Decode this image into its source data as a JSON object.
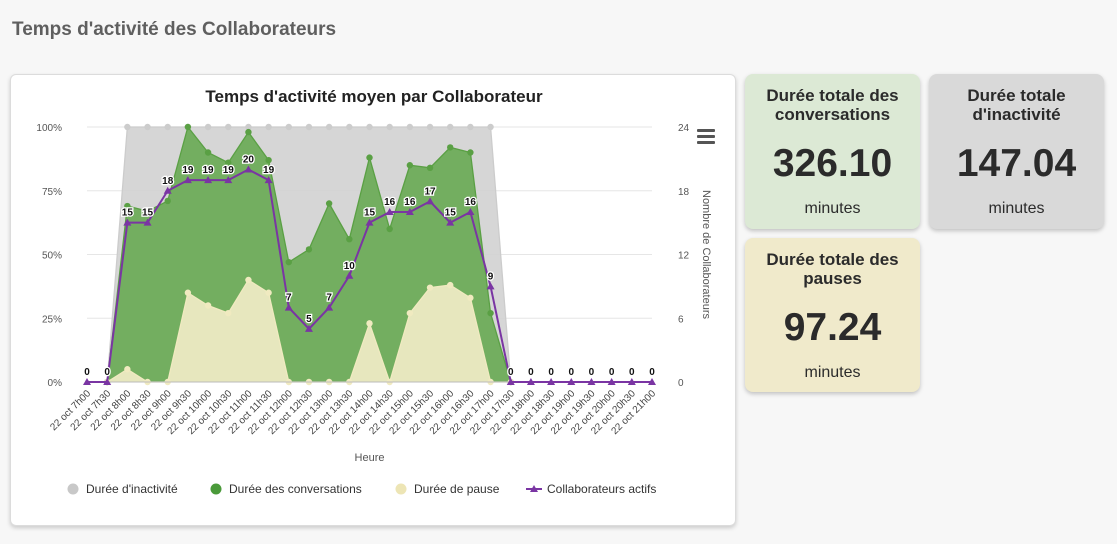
{
  "page": {
    "title": "Temps d'activité des Collaborateurs"
  },
  "cards": {
    "conversations": {
      "title": "Durée totale des conversations",
      "value": "326.10",
      "unit": "minutes",
      "color": "#dce9d5"
    },
    "inactivity": {
      "title": "Durée totale d'inactivité",
      "value": "147.04",
      "unit": "minutes",
      "color": "#d9d9d9"
    },
    "pauses": {
      "title": "Durée totale des pauses",
      "value": "97.24",
      "unit": "minutes",
      "color": "#f0eacb"
    }
  },
  "chart_data": {
    "type": "area",
    "title": "Temps d'activité moyen par Collaborateur",
    "xlabel": "Heure",
    "ylabel": "",
    "y2label": "Nombre de Collaborateurs",
    "ylim": [
      0,
      100
    ],
    "y2lim": [
      0,
      24
    ],
    "yticks": [
      "0%",
      "25%",
      "50%",
      "75%",
      "100%"
    ],
    "y2ticks": [
      "0",
      "6",
      "12",
      "18",
      "24"
    ],
    "grid": true,
    "legend_position": "bottom",
    "categories": [
      "22 oct 7h00",
      "22 oct 7h30",
      "22 oct 8h00",
      "22 oct 8h30",
      "22 oct 9h00",
      "22 oct 9h30",
      "22 oct 10h00",
      "22 oct 10h30",
      "22 oct 11h00",
      "22 oct 11h30",
      "22 oct 12h00",
      "22 oct 12h30",
      "22 oct 13h00",
      "22 oct 13h30",
      "22 oct 14h00",
      "22 oct 14h30",
      "22 oct 15h00",
      "22 oct 15h30",
      "22 oct 16h00",
      "22 oct 16h30",
      "22 oct 17h00",
      "22 oct 17h30",
      "22 oct 18h00",
      "22 oct 18h30",
      "22 oct 19h00",
      "22 oct 19h30",
      "22 oct 20h00",
      "22 oct 20h30",
      "22 oct 21h00"
    ],
    "series": [
      {
        "name": "Durée d'inactivité",
        "axis": "left",
        "kind": "area",
        "color": "#cccccc",
        "values": [
          null,
          0,
          100,
          100,
          100,
          100,
          100,
          100,
          100,
          100,
          100,
          100,
          100,
          100,
          100,
          100,
          100,
          100,
          100,
          100,
          100,
          0,
          null,
          null,
          null,
          null,
          null,
          null,
          null
        ]
      },
      {
        "name": "Durée des conversations",
        "axis": "left",
        "kind": "area",
        "color": "#5aa044",
        "values": [
          null,
          0,
          69,
          67,
          71,
          100,
          90,
          86,
          98,
          87,
          47,
          52,
          70,
          56,
          88,
          60,
          85,
          84,
          92,
          90,
          27,
          0,
          null,
          null,
          null,
          null,
          null,
          null,
          null
        ]
      },
      {
        "name": "Durée de pause",
        "axis": "left",
        "kind": "area",
        "color": "#f0eac0",
        "values": [
          null,
          0,
          5,
          0,
          0,
          35,
          30,
          27,
          40,
          35,
          0,
          0,
          0,
          0,
          23,
          0,
          27,
          37,
          38,
          33,
          0,
          0,
          null,
          null,
          null,
          null,
          null,
          null,
          null
        ]
      },
      {
        "name": "Collaborateurs actifs",
        "axis": "right",
        "kind": "line",
        "color": "#7a35a3",
        "values": [
          0,
          0,
          15,
          15,
          18,
          19,
          19,
          19,
          20,
          19,
          7,
          5,
          7,
          10,
          15,
          16,
          16,
          17,
          15,
          16,
          9,
          0,
          0,
          0,
          0,
          0,
          0,
          0,
          0
        ]
      }
    ],
    "legend": [
      {
        "label": "Durée d'inactivité",
        "color": "#c8c8c8",
        "marker": "circle"
      },
      {
        "label": "Durée des conversations",
        "color": "#4a9a3a",
        "marker": "circle"
      },
      {
        "label": "Durée de pause",
        "color": "#ede5b5",
        "marker": "circle"
      },
      {
        "label": "Collaborateurs actifs",
        "color": "#7a35a3",
        "marker": "triangle"
      }
    ]
  }
}
